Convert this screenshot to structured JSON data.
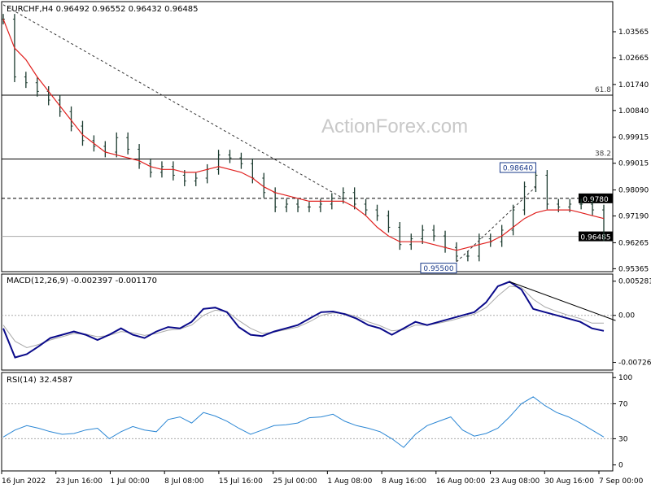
{
  "symbol_header": "EURCHF,H4  0.96492 0.96552 0.96432 0.96485",
  "watermark": "ActionForex.com",
  "colors": {
    "price": "#1b3a2e",
    "ma": "#e0201e",
    "macd": "#0a0a8a",
    "signal": "#a9a9a9",
    "rsi": "#2a86d4",
    "line": "#000000"
  },
  "x_labels": [
    "16 Jun 2022",
    "23 Jun 16:00",
    "1 Jul 00:00",
    "8 Jul 08:00",
    "15 Jul 16:00",
    "25 Jul 00:00",
    "1 Aug 08:00",
    "8 Aug 16:00",
    "16 Aug 00:00",
    "23 Aug 08:00",
    "30 Aug 16:00",
    "7 Sep 00:00"
  ],
  "chart_data": [
    {
      "type": "line",
      "title": "EURCHF,H4",
      "ohlc_last": {
        "open": 0.96492,
        "high": 0.96552,
        "low": 0.96432,
        "close": 0.96485
      },
      "y_ticks": [
        "1.03565",
        "1.02665",
        "1.01740",
        "1.00840",
        "0.99915",
        "0.99015",
        "0.98090",
        "0.97190",
        "0.96265",
        "0.95365"
      ],
      "ylim": [
        0.9532,
        1.0455
      ],
      "series": [
        {
          "values": [
            1.04,
            1.02,
            1.018,
            1.015,
            1.012,
            1.008,
            1.003,
            0.998,
            0.996,
            0.994,
            0.999,
            0.995,
            0.99,
            0.987,
            0.989,
            0.986,
            0.984,
            0.985,
            0.988,
            0.993,
            0.992,
            0.99,
            0.985,
            0.98,
            0.975,
            0.976,
            0.975,
            0.975,
            0.976,
            0.978,
            0.98,
            0.976,
            0.974,
            0.972,
            0.968,
            0.962,
            0.964,
            0.967,
            0.965,
            0.961,
            0.958,
            0.958,
            0.964,
            0.963,
            0.967,
            0.974,
            0.982,
            0.986,
            0.976,
            0.975,
            0.976,
            0.976,
            0.974,
            0.965
          ]
        }
      ],
      "moving_average_values": [
        1.04,
        1.03,
        1.026,
        1.02,
        1.015,
        1.01,
        1.005,
        1.0,
        0.997,
        0.994,
        0.993,
        0.992,
        0.991,
        0.989,
        0.988,
        0.988,
        0.987,
        0.987,
        0.988,
        0.989,
        0.988,
        0.987,
        0.985,
        0.982,
        0.98,
        0.979,
        0.978,
        0.977,
        0.977,
        0.977,
        0.977,
        0.975,
        0.972,
        0.968,
        0.965,
        0.963,
        0.963,
        0.963,
        0.962,
        0.961,
        0.96,
        0.961,
        0.962,
        0.963,
        0.965,
        0.968,
        0.971,
        0.973,
        0.974,
        0.974,
        0.974,
        0.973,
        0.972,
        0.971
      ],
      "horizontal_levels": [
        {
          "value": 1.0137,
          "label": "61.8",
          "style": "solid"
        },
        {
          "value": 0.9916,
          "label": "38.2",
          "style": "solid"
        },
        {
          "value": 0.978,
          "label": "0.9780",
          "style": "dashed",
          "boxed": true
        },
        {
          "value": 0.96485,
          "label": "0.96485",
          "style": "solid",
          "boxed": true
        }
      ],
      "annotations": [
        {
          "text": "0.98640",
          "value": 0.9864,
          "index": 47
        },
        {
          "text": "0.95500",
          "value": 0.955,
          "index": 40
        }
      ],
      "trendlines": [
        {
          "from": {
            "index": 0,
            "value": 1.045
          },
          "to": {
            "index": 30,
            "value": 0.978
          },
          "style": "dashed"
        },
        {
          "from": {
            "index": 40,
            "value": 0.956
          },
          "to": {
            "index": 47,
            "value": 0.982
          },
          "style": "dashed"
        }
      ]
    },
    {
      "type": "line",
      "title": "MACD(12,26,9) -0.002397 -0.001170",
      "y_ticks": [
        "0.005281",
        "0.00",
        "-0.007263"
      ],
      "ylim": [
        -0.0082,
        0.006
      ],
      "series": [
        {
          "values": [
            -0.002,
            -0.0065,
            -0.006,
            -0.0048,
            -0.0035,
            -0.003,
            -0.0025,
            -0.003,
            -0.0038,
            -0.003,
            -0.002,
            -0.003,
            -0.0035,
            -0.0025,
            -0.0018,
            -0.002,
            -0.001,
            0.001,
            0.0012,
            0.0005,
            -0.0018,
            -0.003,
            -0.0032,
            -0.0025,
            -0.002,
            -0.0015,
            -0.0005,
            0.0005,
            0.0006,
            0.0002,
            -0.0005,
            -0.0015,
            -0.002,
            -0.003,
            -0.002,
            -0.001,
            -0.0015,
            -0.001,
            -0.0005,
            0.0,
            0.0005,
            0.002,
            0.0045,
            0.0052,
            0.004,
            0.001,
            0.0005,
            0.0,
            -0.0005,
            -0.001,
            -0.002,
            -0.0024
          ]
        },
        {
          "values": [
            -0.0015,
            -0.004,
            -0.005,
            -0.0045,
            -0.0038,
            -0.0033,
            -0.0028,
            -0.0029,
            -0.0033,
            -0.0031,
            -0.0025,
            -0.0027,
            -0.0031,
            -0.0028,
            -0.0023,
            -0.0021,
            -0.0015,
            0.0,
            0.0008,
            0.0006,
            -0.0008,
            -0.002,
            -0.0028,
            -0.0026,
            -0.0022,
            -0.0018,
            -0.001,
            0.0,
            0.0004,
            0.0003,
            -0.0002,
            -0.001,
            -0.0016,
            -0.0024,
            -0.0022,
            -0.0015,
            -0.0015,
            -0.0012,
            -0.0008,
            -0.0003,
            0.0002,
            0.0012,
            0.003,
            0.0045,
            0.0043,
            0.0025,
            0.0013,
            0.0006,
            0.0,
            -0.0005,
            -0.0012,
            -0.0012
          ]
        }
      ],
      "trendline": {
        "from": {
          "index": 43,
          "value": 0.0052
        },
        "to": {
          "index": 52,
          "value": -0.0008
        }
      }
    },
    {
      "type": "line",
      "title": "RSI(14) 32.4587",
      "y_ticks": [
        "100",
        "70",
        "30",
        "0"
      ],
      "ylim": [
        -5,
        103
      ],
      "levels": [
        70,
        30
      ],
      "series": [
        {
          "values": [
            32,
            40,
            45,
            42,
            38,
            35,
            36,
            40,
            42,
            30,
            38,
            44,
            40,
            38,
            52,
            55,
            48,
            60,
            56,
            50,
            42,
            35,
            40,
            45,
            46,
            48,
            54,
            55,
            58,
            50,
            45,
            42,
            38,
            30,
            20,
            35,
            45,
            50,
            55,
            40,
            33,
            36,
            42,
            55,
            70,
            78,
            68,
            60,
            55,
            48,
            40,
            32
          ]
        }
      ]
    }
  ]
}
